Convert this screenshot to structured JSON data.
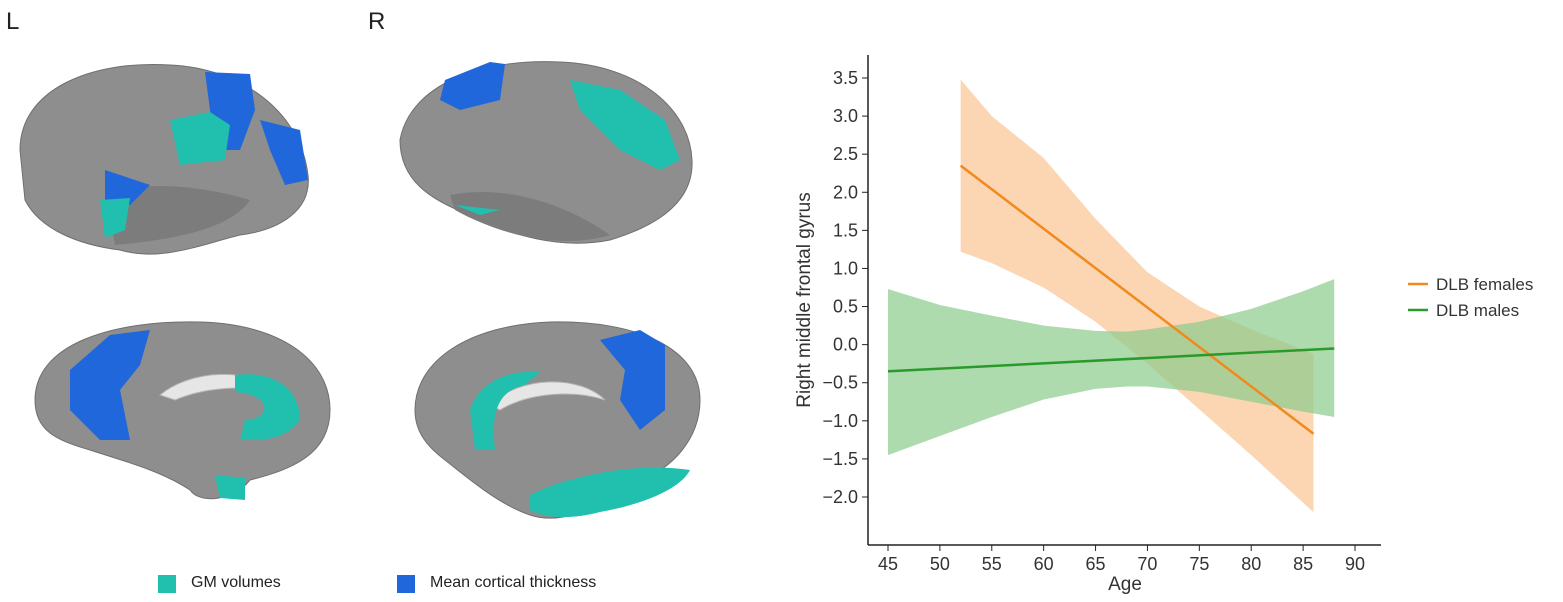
{
  "panels": {
    "left_label": "L",
    "right_label": "R"
  },
  "brain_legend": {
    "items": [
      {
        "label": "GM volumes",
        "color": "#21bfae"
      },
      {
        "label": "Mean cortical thickness",
        "color": "#1f67db"
      }
    ]
  },
  "colors": {
    "cortex": "#8e8e8e",
    "cortex_dark": "#6f6f6f",
    "callosum": "#e6e6e6"
  },
  "chart_data": {
    "type": "line",
    "xlabel": "Age",
    "ylabel": "Right middle frontal gyrus",
    "xlim": [
      43,
      92
    ],
    "ylim": [
      -2.5,
      3.6
    ],
    "xticks": [
      45,
      50,
      55,
      60,
      65,
      70,
      75,
      80,
      85,
      90
    ],
    "yticks": [
      3.5,
      3.0,
      2.5,
      2.0,
      1.5,
      1.0,
      0.5,
      0.0,
      -0.5,
      -1.0,
      -1.5,
      -2.0
    ],
    "ytick_labels": [
      "3.5",
      "3.0",
      "2.5",
      "2.0",
      "1.5",
      "1.0",
      "0.5",
      "0.0",
      "−0.5",
      "−1.0",
      "−1.5",
      "−2.0"
    ],
    "grid": false,
    "legend_position": "right",
    "series": [
      {
        "name": "DLB females",
        "color": "#f08a1c",
        "band_color": "#fbc591",
        "x": [
          52,
          86
        ],
        "y": [
          2.35,
          -1.17
        ],
        "ci_x": [
          52,
          55,
          60,
          65,
          70,
          75,
          80,
          86
        ],
        "ci_upper": [
          3.48,
          3.0,
          2.45,
          1.65,
          0.95,
          0.5,
          0.2,
          -0.12
        ],
        "ci_lower": [
          1.22,
          1.07,
          0.75,
          0.3,
          -0.25,
          -0.85,
          -1.45,
          -2.2
        ]
      },
      {
        "name": "DLB males",
        "color": "#2a9a2a",
        "band_color": "#8ccc8c",
        "x": [
          45,
          88
        ],
        "y": [
          -0.35,
          -0.05
        ],
        "ci_x": [
          45,
          50,
          55,
          60,
          65,
          68,
          70,
          75,
          80,
          85,
          88
        ],
        "ci_upper": [
          0.73,
          0.52,
          0.38,
          0.25,
          0.18,
          0.17,
          0.2,
          0.3,
          0.47,
          0.7,
          0.86
        ],
        "ci_lower": [
          -1.45,
          -1.2,
          -0.95,
          -0.72,
          -0.58,
          -0.55,
          -0.55,
          -0.62,
          -0.75,
          -0.88,
          -0.95
        ]
      }
    ]
  }
}
